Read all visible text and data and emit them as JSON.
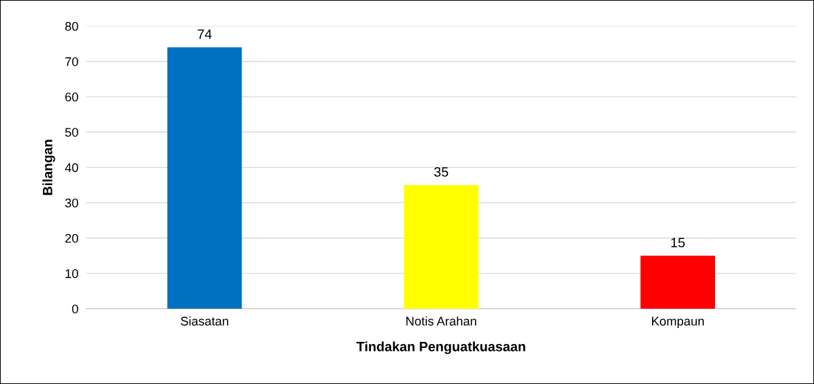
{
  "chart_data": {
    "type": "bar",
    "xlabel": "Tindakan Penguatkuasaan",
    "ylabel": "Bilangan",
    "categories": [
      "Siasatan",
      "Notis Arahan",
      "Kompaun"
    ],
    "values": [
      74,
      35,
      15
    ],
    "colors": [
      "#0070c0",
      "#ffff00",
      "#ff0000"
    ],
    "ylim": [
      0,
      80
    ],
    "yticks": [
      0,
      10,
      20,
      30,
      40,
      50,
      60,
      70,
      80
    ],
    "grid": "y",
    "data_labels": true
  }
}
